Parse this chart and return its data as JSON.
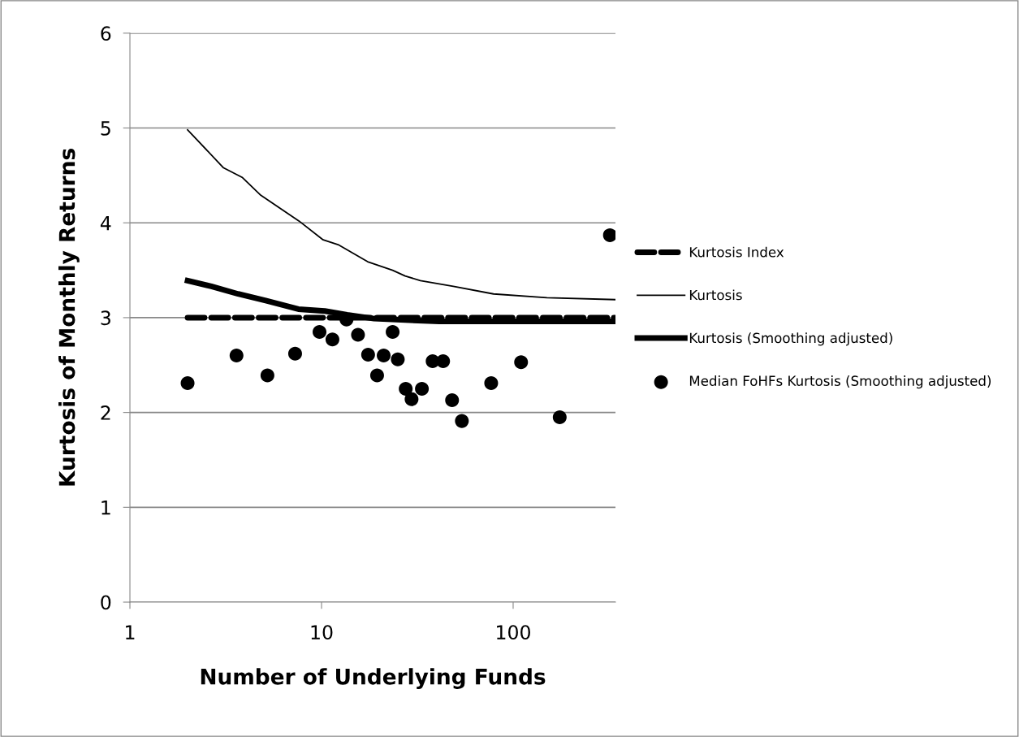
{
  "chart_data": {
    "type": "line",
    "xlabel": "Number of Underlying Funds",
    "ylabel": "Kurtosis of Monthly Returns",
    "log": "x",
    "xlim": [
      1,
      342
    ],
    "xticks": [
      1,
      10,
      100
    ],
    "ylim": [
      0,
      6
    ],
    "yticks": [
      0,
      1,
      2,
      3,
      4,
      5,
      6
    ],
    "grid": "y",
    "legend": "right",
    "series": [
      {
        "name": "Kurtosis Index",
        "type": "line",
        "line_style": "dashed",
        "color": "#000000",
        "x": [
          2,
          340
        ],
        "values": [
          3.0,
          3.0
        ]
      },
      {
        "name": "Kurtosis",
        "type": "line",
        "line_style": "solid",
        "color": "#000000",
        "x": [
          2.0,
          3.08,
          3.85,
          4.82,
          7.62,
          10.2,
          12.2,
          17.4,
          23.5,
          27.3,
          32.8,
          48.7,
          79.0,
          150,
          340
        ],
        "values": [
          4.98,
          4.58,
          4.48,
          4.29,
          4.02,
          3.82,
          3.77,
          3.59,
          3.5,
          3.44,
          3.39,
          3.33,
          3.25,
          3.21,
          3.19
        ]
      },
      {
        "name": "Kurtosis (Smoothing adjusted)",
        "type": "line",
        "line_style": "solid",
        "color": "#000000",
        "x": [
          2.0,
          2.66,
          3.67,
          5.11,
          7.57,
          10.4,
          13.6,
          18.8,
          41.1,
          340
        ],
        "values": [
          3.39,
          3.33,
          3.25,
          3.18,
          3.09,
          3.07,
          3.03,
          2.99,
          2.96,
          2.96
        ]
      },
      {
        "name": "Median FoHFs Kurtosis (Smoothing adjusted)",
        "type": "scatter",
        "marker": "circle",
        "color": "#000000",
        "x": [
          2.0,
          3.6,
          5.22,
          7.28,
          9.76,
          11.4,
          13.5,
          15.5,
          17.5,
          19.5,
          21.1,
          23.5,
          25.0,
          27.5,
          29.5,
          33.4,
          38.0,
          43.1,
          48.0,
          54.0,
          76.8,
          110,
          175,
          320
        ],
        "values": [
          2.31,
          2.6,
          2.39,
          2.62,
          2.85,
          2.77,
          2.98,
          2.82,
          2.61,
          2.39,
          2.6,
          2.85,
          2.56,
          2.25,
          2.14,
          2.25,
          2.54,
          2.54,
          2.13,
          1.91,
          2.31,
          2.53,
          1.95,
          3.87
        ]
      }
    ]
  }
}
